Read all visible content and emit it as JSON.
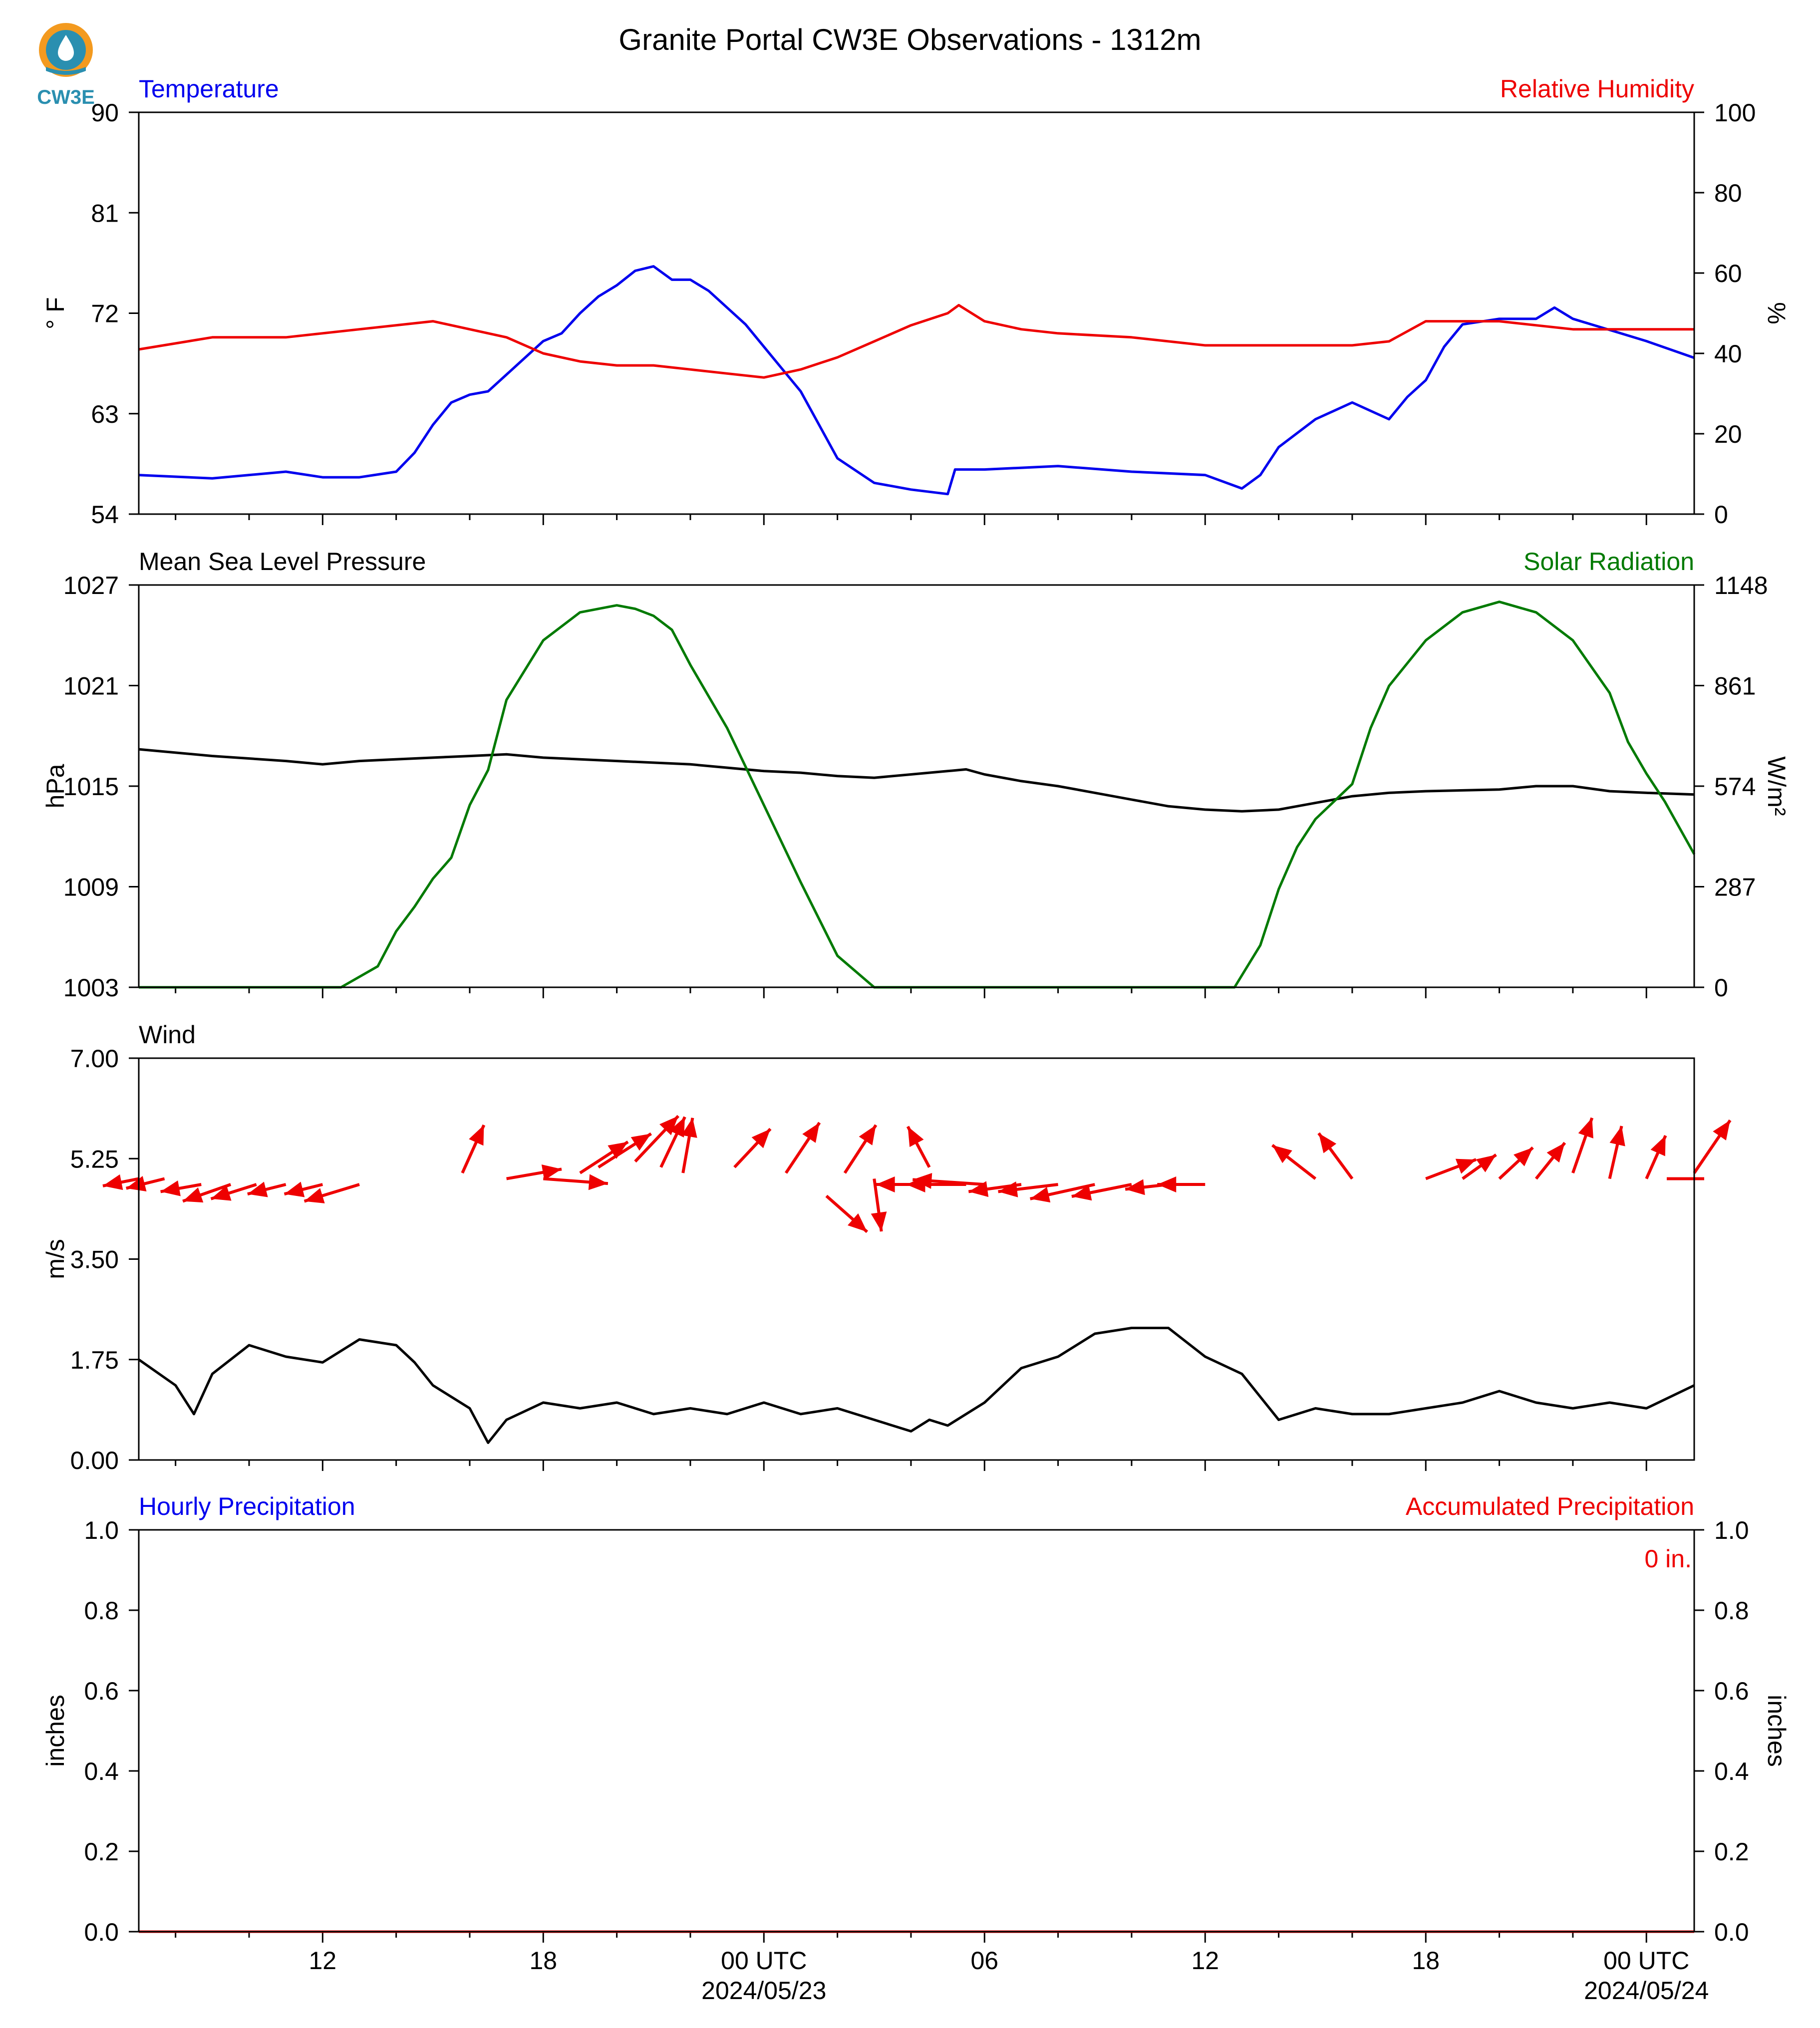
{
  "title": "Granite Portal CW3E Observations - 1312m",
  "logo_text": "CW3E",
  "colors": {
    "blue": "#0000ee",
    "red": "#ee0000",
    "green": "#007a00",
    "black": "#000000",
    "logo_orange": "#f39a1f",
    "logo_teal": "#2a8fb0"
  },
  "x_axis": {
    "range_hours": [
      -17,
      25.3
    ],
    "major_ticks": [
      {
        "h": -12,
        "label": "12",
        "sub": ""
      },
      {
        "h": -6,
        "label": "18",
        "sub": ""
      },
      {
        "h": 0,
        "label": "00 UTC",
        "sub": "2024/05/23"
      },
      {
        "h": 6,
        "label": "06",
        "sub": ""
      },
      {
        "h": 12,
        "label": "12",
        "sub": ""
      },
      {
        "h": 18,
        "label": "18",
        "sub": ""
      },
      {
        "h": 24,
        "label": "00 UTC",
        "sub": "2024/05/24"
      }
    ],
    "minor_ticks": [
      -16,
      -14,
      -10,
      -8,
      -4,
      -2,
      2,
      4,
      8,
      10,
      14,
      16,
      20,
      22
    ]
  },
  "chart_data": [
    {
      "type": "line",
      "panel": "temperature_humidity",
      "left_title": "Temperature",
      "right_title": "Relative Humidity",
      "ylabel_left": "° F",
      "ylabel_right": "%",
      "ylim_left": [
        54,
        90
      ],
      "ylim_right": [
        0,
        100
      ],
      "yticks_left": [
        54,
        63,
        72,
        81,
        90
      ],
      "yticks_right": [
        0,
        20,
        40,
        60,
        80,
        100
      ],
      "series": [
        {
          "name": "Temperature",
          "axis": "left",
          "color": "blue",
          "x": [
            -17,
            -15,
            -13,
            -12,
            -11,
            -10,
            -9.5,
            -9,
            -8.5,
            -8,
            -7.5,
            -7,
            -6.5,
            -6,
            -5.5,
            -5,
            -4.5,
            -4,
            -3.5,
            -3,
            -2.5,
            -2,
            -1.5,
            -1,
            -0.5,
            0,
            0.5,
            1,
            1.5,
            2,
            3,
            3.5,
            4,
            5,
            5.2,
            6,
            8,
            10,
            12,
            13,
            13.5,
            14,
            15,
            16,
            17,
            17.5,
            18,
            18.5,
            19,
            20,
            21,
            21.5,
            22,
            22.5,
            23,
            24,
            25.3
          ],
          "y": [
            57.5,
            57.2,
            57.8,
            57.3,
            57.3,
            57.8,
            59.5,
            62,
            64,
            64.7,
            65,
            66.5,
            68,
            69.5,
            70.2,
            72,
            73.5,
            74.5,
            75.8,
            76.2,
            75,
            75,
            74,
            72.5,
            71,
            69,
            67,
            65,
            62,
            59,
            56.8,
            56.5,
            56.2,
            55.8,
            58,
            58,
            58.3,
            57.8,
            57.5,
            56.3,
            57.5,
            60,
            62.5,
            64,
            62.5,
            64.5,
            66,
            69,
            71,
            71.5,
            71.5,
            72.5,
            71.5,
            71,
            70.5,
            69.5,
            68
          ]
        },
        {
          "name": "Relative Humidity",
          "axis": "right",
          "color": "red",
          "x": [
            -17,
            -15,
            -13,
            -11,
            -9,
            -8,
            -7,
            -6,
            -5,
            -4,
            -3,
            -2,
            -1,
            0,
            1,
            2,
            3,
            4,
            5,
            5.3,
            6,
            7,
            8,
            10,
            12,
            14,
            15,
            16,
            17,
            18,
            19,
            20,
            21,
            22,
            23,
            24,
            25.3
          ],
          "y": [
            41,
            44,
            44,
            46,
            48,
            46,
            44,
            40,
            38,
            37,
            37,
            36,
            35,
            34,
            36,
            39,
            43,
            47,
            50,
            52,
            48,
            46,
            45,
            44,
            42,
            42,
            42,
            42,
            43,
            48,
            48,
            48,
            47,
            46,
            46,
            46,
            46
          ]
        }
      ]
    },
    {
      "type": "line",
      "panel": "pressure_solar",
      "left_title": "Mean Sea Level Pressure",
      "right_title": "Solar Radiation",
      "ylabel_left": "hPa",
      "ylabel_right": "W/m²",
      "ylim_left": [
        1003,
        1027
      ],
      "ylim_right": [
        0,
        1148
      ],
      "yticks_left": [
        1003,
        1009,
        1015,
        1021,
        1027
      ],
      "yticks_right": [
        0,
        287,
        574,
        861,
        1148
      ],
      "series": [
        {
          "name": "Mean Sea Level Pressure",
          "axis": "left",
          "color": "black",
          "x": [
            -17,
            -15,
            -13,
            -12,
            -11,
            -9,
            -8,
            -7,
            -6,
            -4,
            -2,
            0,
            1,
            2,
            3,
            4,
            5,
            5.5,
            6,
            7,
            8,
            9,
            10,
            11,
            12,
            13,
            14,
            15,
            16,
            17,
            18,
            20,
            21,
            22,
            23,
            24,
            25.3
          ],
          "y": [
            1017.2,
            1016.8,
            1016.5,
            1016.3,
            1016.5,
            1016.7,
            1016.8,
            1016.9,
            1016.7,
            1016.5,
            1016.3,
            1015.9,
            1015.8,
            1015.6,
            1015.5,
            1015.7,
            1015.9,
            1016.0,
            1015.7,
            1015.3,
            1015.0,
            1014.6,
            1014.2,
            1013.8,
            1013.6,
            1013.5,
            1013.6,
            1014.0,
            1014.4,
            1014.6,
            1014.7,
            1014.8,
            1015.0,
            1015.0,
            1014.7,
            1014.6,
            1014.5
          ]
        },
        {
          "name": "Solar Radiation",
          "axis": "right",
          "color": "green",
          "x": [
            -17,
            -11.5,
            -10.5,
            -10,
            -9.5,
            -9,
            -8.5,
            -8,
            -7.5,
            -7.2,
            -7,
            -6,
            -5,
            -4,
            -3.5,
            -3,
            -2.5,
            -2,
            -1,
            0,
            1,
            2,
            3,
            5,
            8,
            12,
            12.8,
            13.5,
            14,
            14.5,
            15,
            16,
            16.5,
            17,
            18,
            19,
            20,
            21,
            22,
            23,
            23.5,
            24,
            24.5,
            25.3
          ],
          "y": [
            0,
            0,
            60,
            160,
            230,
            310,
            370,
            520,
            620,
            740,
            820,
            990,
            1070,
            1090,
            1080,
            1060,
            1020,
            920,
            740,
            520,
            300,
            90,
            0,
            0,
            0,
            0,
            0,
            120,
            280,
            400,
            480,
            580,
            740,
            860,
            990,
            1070,
            1100,
            1070,
            990,
            840,
            700,
            610,
            530,
            380
          ]
        }
      ]
    },
    {
      "type": "line",
      "panel": "wind",
      "left_title": "Wind",
      "ylabel_left": "m/s",
      "ylim_left": [
        0,
        7
      ],
      "yticks_left": [
        0.0,
        1.75,
        3.5,
        5.25,
        7.0
      ],
      "series": [
        {
          "name": "Wind",
          "axis": "left",
          "color": "black",
          "x": [
            -17,
            -16,
            -15.5,
            -15,
            -14,
            -13,
            -12,
            -11,
            -10,
            -9.5,
            -9,
            -8,
            -7.5,
            -7,
            -6,
            -5,
            -4,
            -3,
            -2,
            -1,
            0,
            1,
            2,
            3,
            4,
            4.5,
            5,
            6,
            7,
            8,
            9,
            10,
            11,
            12,
            13,
            14,
            15,
            16,
            17,
            18,
            19,
            20,
            21,
            22,
            23,
            24,
            25.3
          ],
          "y": [
            1.75,
            1.3,
            0.8,
            1.5,
            2.0,
            1.8,
            1.7,
            2.1,
            2.0,
            1.7,
            1.3,
            0.9,
            0.3,
            0.7,
            1.0,
            0.9,
            1.0,
            0.8,
            0.9,
            0.8,
            1.0,
            0.8,
            0.9,
            0.7,
            0.5,
            0.7,
            0.6,
            1.0,
            1.6,
            1.8,
            2.2,
            2.3,
            2.3,
            1.8,
            1.5,
            0.7,
            0.9,
            0.8,
            0.8,
            0.9,
            1.0,
            1.2,
            1.0,
            0.9,
            1.0,
            0.9,
            1.3
          ]
        },
        {
          "name": "Wind direction arrows",
          "axis": "left",
          "color": "red",
          "type": "quiver",
          "arrows": [
            [
              -17,
              4.9,
              -1.5,
              -0.3
            ],
            [
              -16.3,
              4.9,
              -1.6,
              -0.4
            ],
            [
              -15.3,
              4.8,
              -1.7,
              -0.3
            ],
            [
              -14.5,
              4.8,
              -2.0,
              -0.7
            ],
            [
              -13.8,
              4.8,
              -1.9,
              -0.6
            ],
            [
              -13,
              4.8,
              -1.6,
              -0.4
            ],
            [
              -12,
              4.8,
              -1.6,
              -0.4
            ],
            [
              -11,
              4.8,
              -2.3,
              -0.7
            ],
            [
              -8.2,
              5.0,
              0.9,
              2.0
            ],
            [
              -7,
              4.9,
              2.3,
              0.4
            ],
            [
              -6,
              4.9,
              2.7,
              -0.2
            ],
            [
              -5,
              5.0,
              2.0,
              1.3
            ],
            [
              -4.5,
              5.1,
              2.2,
              1.4
            ],
            [
              -3.5,
              5.2,
              1.8,
              1.9
            ],
            [
              -2.8,
              5.1,
              1.0,
              2.1
            ],
            [
              -2.2,
              5.0,
              0.4,
              2.3
            ],
            [
              -0.8,
              5.1,
              1.5,
              1.6
            ],
            [
              0.6,
              5.0,
              1.4,
              2.1
            ],
            [
              2.2,
              5.0,
              1.3,
              2.0
            ],
            [
              1.7,
              4.6,
              1.7,
              -1.5
            ],
            [
              3.0,
              4.9,
              0.3,
              -2.2
            ],
            [
              4.5,
              5.1,
              -0.9,
              1.7
            ],
            [
              5.5,
              4.8,
              -2.5,
              0
            ],
            [
              5.0,
              4.8,
              -3.0,
              0
            ],
            [
              6.0,
              4.8,
              -3.0,
              0.2
            ],
            [
              7.0,
              4.8,
              -2.2,
              -0.3
            ],
            [
              8.0,
              4.8,
              -2.5,
              -0.3
            ],
            [
              9.0,
              4.8,
              -2.7,
              -0.6
            ],
            [
              10.0,
              4.8,
              -2.5,
              -0.5
            ],
            [
              11.0,
              4.8,
              -1.8,
              -0.2
            ],
            [
              12.0,
              4.8,
              -2.0,
              0
            ],
            [
              15.0,
              4.9,
              -1.8,
              1.4
            ],
            [
              16.0,
              4.9,
              -1.4,
              1.9
            ],
            [
              18.0,
              4.9,
              2.1,
              0.8
            ],
            [
              19.0,
              4.9,
              1.4,
              1.0
            ],
            [
              20.0,
              4.9,
              1.4,
              1.3
            ],
            [
              21.0,
              4.9,
              1.2,
              1.5
            ],
            [
              22.0,
              5.0,
              0.8,
              2.3
            ],
            [
              23.0,
              4.9,
              0.5,
              2.2
            ],
            [
              24.0,
              4.9,
              0.8,
              1.8
            ],
            [
              25.3,
              4.9,
              0,
              0
            ],
            [
              25.3,
              5.0,
              1.5,
              2.2
            ]
          ]
        }
      ]
    },
    {
      "type": "bar",
      "panel": "precipitation",
      "left_title": "Hourly Precipitation",
      "right_title": "Accumulated Precipitation",
      "ylabel_left": "inches",
      "ylabel_right": "inches",
      "ylim_left": [
        0,
        1.0
      ],
      "ylim_right": [
        0,
        1.0
      ],
      "yticks_left": [
        0.0,
        0.2,
        0.4,
        0.6,
        0.8,
        1.0
      ],
      "yticks_right": [
        0.0,
        0.2,
        0.4,
        0.6,
        0.8,
        1.0
      ],
      "annotation": "0 in.",
      "series": [
        {
          "name": "Hourly Precipitation",
          "axis": "left",
          "color": "blue",
          "values": []
        },
        {
          "name": "Accumulated Precipitation",
          "axis": "right",
          "color": "red",
          "x": [
            -17,
            25.3
          ],
          "y": [
            0,
            0
          ]
        }
      ]
    }
  ]
}
